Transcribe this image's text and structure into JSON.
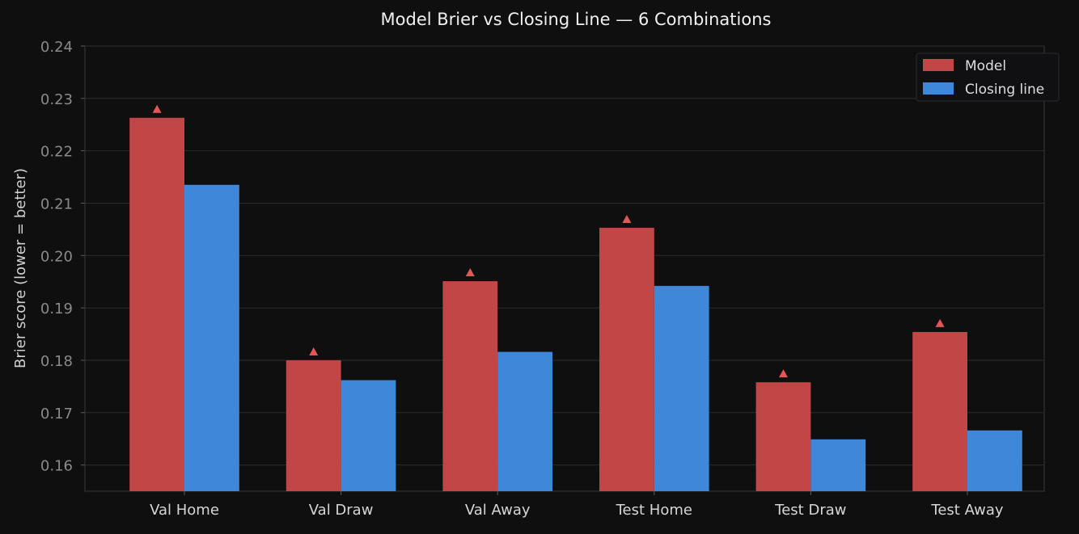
{
  "chart_data": {
    "type": "bar",
    "title": "Model Brier vs Closing Line — 6 Combinations",
    "xlabel": "",
    "ylabel": "Brier score (lower = better)",
    "categories": [
      "Val Home",
      "Val Draw",
      "Val Away",
      "Test Home",
      "Test Draw",
      "Test Away"
    ],
    "series": [
      {
        "name": "Model",
        "color": "#c24646",
        "values": [
          0.2263,
          0.18,
          0.1951,
          0.2053,
          0.1758,
          0.1854
        ]
      },
      {
        "name": "Closing line",
        "color": "#3f88d9",
        "values": [
          0.2135,
          0.1762,
          0.1816,
          0.1942,
          0.1649,
          0.1666
        ]
      }
    ],
    "marker": {
      "symbol": "▲",
      "color": "#e55757",
      "applies_to": "Model"
    },
    "ylim": [
      0.155,
      0.24
    ],
    "yticks": [
      0.16,
      0.17,
      0.18,
      0.19,
      0.2,
      0.21,
      0.22,
      0.23,
      0.24
    ],
    "ytick_labels": [
      "0.16",
      "0.17",
      "0.18",
      "0.19",
      "0.20",
      "0.21",
      "0.22",
      "0.23",
      "0.24"
    ],
    "grid": true,
    "legend_position": "top-right"
  }
}
